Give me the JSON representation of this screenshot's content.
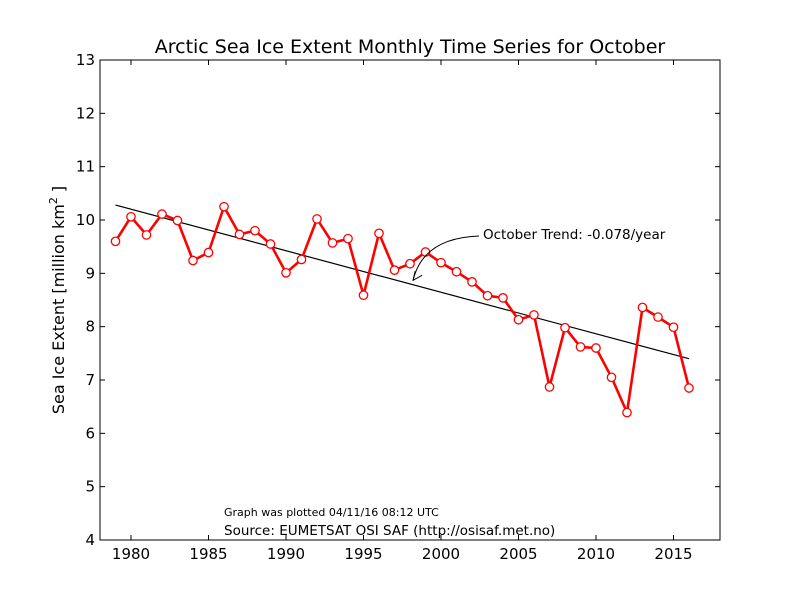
{
  "chart_data": {
    "type": "line",
    "title": "Arctic Sea Ice Extent Monthly Time Series for October",
    "ylabel_main": "Sea Ice Extent [million km",
    "ylabel_sup": "2",
    "ylabel_end": " ]",
    "xlabel": "",
    "xlim": [
      1978,
      2018
    ],
    "ylim": [
      4,
      13
    ],
    "xticks": [
      1980,
      1985,
      1990,
      1995,
      2000,
      2005,
      2010,
      2015
    ],
    "yticks": [
      4,
      5,
      6,
      7,
      8,
      9,
      10,
      11,
      12,
      13
    ],
    "grid": false,
    "series": [
      {
        "color": "#ff0000",
        "marker": "hollow-circle",
        "x": [
          1979,
          1980,
          1981,
          1982,
          1983,
          1984,
          1985,
          1986,
          1987,
          1988,
          1989,
          1990,
          1991,
          1992,
          1993,
          1994,
          1995,
          1996,
          1997,
          1998,
          1999,
          2000,
          2001,
          2002,
          2003,
          2004,
          2005,
          2006,
          2007,
          2008,
          2009,
          2010,
          2011,
          2012,
          2013,
          2014,
          2015,
          2016
        ],
        "values": [
          9.6,
          10.06,
          9.72,
          10.11,
          9.99,
          9.24,
          9.39,
          10.25,
          9.73,
          9.8,
          9.55,
          9.01,
          9.26,
          10.02,
          9.57,
          9.65,
          8.59,
          9.75,
          9.06,
          9.18,
          9.4,
          9.2,
          9.03,
          8.84,
          8.58,
          8.54,
          8.13,
          8.22,
          6.87,
          7.98,
          7.62,
          7.6,
          7.05,
          6.39,
          8.36,
          8.18,
          7.99,
          6.85
        ]
      }
    ],
    "trend": {
      "color": "#000000",
      "x": [
        1979,
        2016
      ],
      "values": [
        10.28,
        7.4
      ]
    },
    "annotations": [
      {
        "text": "October Trend: -0.078/year",
        "arrow_to_x": 1998.2,
        "arrow_to_y": 8.87
      }
    ],
    "footnotes": {
      "plotted": "Graph was plotted 04/11/16 08:12 UTC",
      "source": "Source: EUMETSAT OSI SAF (http://osisaf.met.no)"
    }
  }
}
